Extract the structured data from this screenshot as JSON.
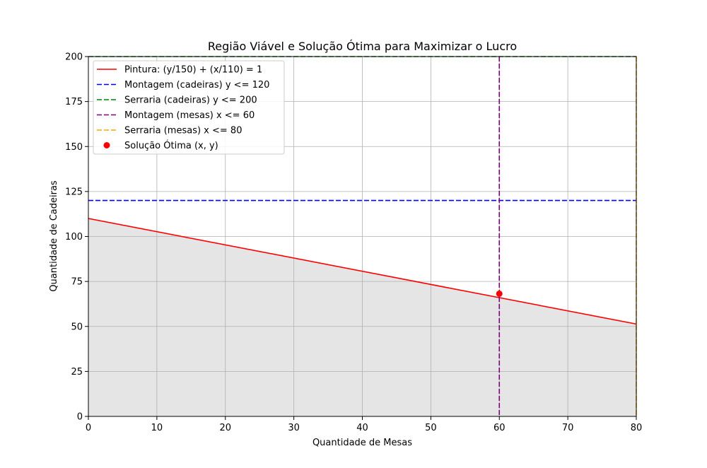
{
  "chart_data": {
    "type": "line",
    "title": "Região Viável e Solução Ótima para Maximizar o Lucro",
    "xlabel": "Quantidade de Mesas",
    "ylabel": "Quantidade de Cadeiras",
    "xlim": [
      0,
      80
    ],
    "ylim": [
      0,
      200
    ],
    "xticks": [
      0,
      10,
      20,
      30,
      40,
      50,
      60,
      70,
      80
    ],
    "yticks": [
      0,
      25,
      50,
      75,
      100,
      125,
      150,
      175,
      200
    ],
    "grid": true,
    "legend_position": "upper left",
    "series": [
      {
        "name": "Pintura: (y/150) + (x/110) = 1",
        "kind": "line",
        "style": "solid",
        "color": "#ff0000",
        "x": [
          0,
          80
        ],
        "y": [
          110,
          51.33
        ]
      },
      {
        "name": "Montagem (cadeiras) y <= 120",
        "kind": "hline",
        "style": "dashed",
        "color": "#0000ff",
        "value": 120
      },
      {
        "name": "Serraria (cadeiras) y <= 200",
        "kind": "hline",
        "style": "dashed",
        "color": "#008000",
        "value": 200
      },
      {
        "name": "Montagem (mesas) x <= 60",
        "kind": "vline",
        "style": "dashed",
        "color": "#800080",
        "value": 60
      },
      {
        "name": "Serraria (mesas) x <= 80",
        "kind": "vline",
        "style": "dashed",
        "color": "#ffa500",
        "value": 80
      },
      {
        "name": "Solução Ótima (x, y)",
        "kind": "point",
        "color": "#ff0000",
        "x": 60,
        "y": 68.18
      }
    ],
    "feasible_region": {
      "color": "#e5e5e5",
      "x": [
        0,
        80
      ],
      "y_top": [
        110,
        51.33
      ]
    }
  }
}
